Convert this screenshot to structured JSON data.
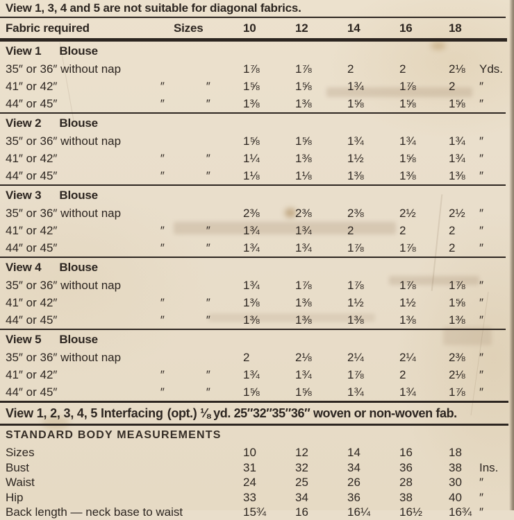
{
  "colors": {
    "paper": "#e9decb",
    "ink": "#2c2520"
  },
  "note": "View 1, 3, 4 and 5 are not suitable for diagonal fabrics.",
  "header": {
    "fabric_required": "Fabric required",
    "sizes_label": "Sizes",
    "sizes": [
      "10",
      "12",
      "14",
      "16",
      "18"
    ]
  },
  "table": {
    "views": [
      {
        "title": "View 1",
        "subtitle": "Blouse",
        "rows": [
          {
            "label": "35″ or 36″ without nap",
            "values": [
              "1⅞",
              "1⅞",
              "2",
              "2",
              "2⅛"
            ],
            "unit": "Yds."
          },
          {
            "label": "41″ or 42″",
            "label_dittos": [
              "″",
              "″"
            ],
            "values": [
              "1⅝",
              "1⅝",
              "1¾",
              "1⅞",
              "2"
            ],
            "unit": "″"
          },
          {
            "label": "44″ or 45″",
            "label_dittos": [
              "″",
              "″"
            ],
            "values": [
              "1⅜",
              "1⅜",
              "1⅝",
              "1⅝",
              "1⅝"
            ],
            "unit": "″"
          }
        ]
      },
      {
        "title": "View 2",
        "subtitle": "Blouse",
        "rows": [
          {
            "label": "35″ or 36″ without nap",
            "values": [
              "1⅝",
              "1⅝",
              "1¾",
              "1¾",
              "1¾"
            ],
            "unit": "″"
          },
          {
            "label": "41″ or 42″",
            "label_dittos": [
              "″",
              "″"
            ],
            "values": [
              "1¼",
              "1⅜",
              "1½",
              "1⅝",
              "1¾"
            ],
            "unit": "″"
          },
          {
            "label": "44″ or 45″",
            "label_dittos": [
              "″",
              "″"
            ],
            "values": [
              "1⅛",
              "1⅛",
              "1⅜",
              "1⅜",
              "1⅜"
            ],
            "unit": "″"
          }
        ]
      },
      {
        "title": "View 3",
        "subtitle": "Blouse",
        "rows": [
          {
            "label": "35″ or 36″ without nap",
            "values": [
              "2⅜",
              "2⅜",
              "2⅜",
              "2½",
              "2½"
            ],
            "unit": "″"
          },
          {
            "label": "41″ or 42″",
            "label_dittos": [
              "″",
              "″"
            ],
            "values": [
              "1¾",
              "1¾",
              "2",
              "2",
              "2"
            ],
            "unit": "″"
          },
          {
            "label": "44″ or 45″",
            "label_dittos": [
              "″",
              "″"
            ],
            "values": [
              "1¾",
              "1¾",
              "1⅞",
              "1⅞",
              "2"
            ],
            "unit": "″"
          }
        ]
      },
      {
        "title": "View 4",
        "subtitle": "Blouse",
        "rows": [
          {
            "label": "35″ or 36″ without nap",
            "values": [
              "1¾",
              "1⅞",
              "1⅞",
              "1⅞",
              "1⅞"
            ],
            "unit": "″"
          },
          {
            "label": "41″ or 42″",
            "label_dittos": [
              "″",
              "″"
            ],
            "values": [
              "1⅜",
              "1⅜",
              "1½",
              "1½",
              "1⅝"
            ],
            "unit": "″"
          },
          {
            "label": "44″ or 45″",
            "label_dittos": [
              "″",
              "″"
            ],
            "values": [
              "1⅜",
              "1⅜",
              "1⅜",
              "1⅜",
              "1⅜"
            ],
            "unit": "″"
          }
        ]
      },
      {
        "title": "View 5",
        "subtitle": "Blouse",
        "rows": [
          {
            "label": "35″ or 36″ without nap",
            "values": [
              "2",
              "2⅛",
              "2¼",
              "2¼",
              "2⅜"
            ],
            "unit": "″"
          },
          {
            "label": "41″ or 42″",
            "label_dittos": [
              "″",
              "″"
            ],
            "values": [
              "1¾",
              "1¾",
              "1⅞",
              "2",
              "2⅛"
            ],
            "unit": "″"
          },
          {
            "label": "44″ or 45″",
            "label_dittos": [
              "″",
              "″"
            ],
            "values": [
              "1⅝",
              "1⅝",
              "1¾",
              "1¾",
              "1⅞"
            ],
            "unit": "″"
          }
        ]
      }
    ]
  },
  "interfacing": {
    "bold_text": "View 1, 2, 3, 4, 5 Interfacing",
    "rest_text": "(opt.) ⅛ yd. 25″32″35″36″ woven or non-woven fab."
  },
  "measurements": {
    "title": "STANDARD BODY MEASUREMENTS",
    "rows": [
      {
        "label": "Sizes",
        "values": [
          "10",
          "12",
          "14",
          "16",
          "18"
        ],
        "unit": ""
      },
      {
        "label": "Bust",
        "values": [
          "31",
          "32",
          "34",
          "36",
          "38"
        ],
        "unit": "Ins."
      },
      {
        "label": "Waist",
        "values": [
          "24",
          "25",
          "26",
          "28",
          "30"
        ],
        "unit": "″"
      },
      {
        "label": "Hip",
        "values": [
          "33",
          "34",
          "36",
          "38",
          "40"
        ],
        "unit": "″"
      },
      {
        "label": "Back length — neck base to waist",
        "values": [
          "15¾",
          "16",
          "16¼",
          "16½",
          "16¾"
        ],
        "unit": "″"
      }
    ]
  }
}
